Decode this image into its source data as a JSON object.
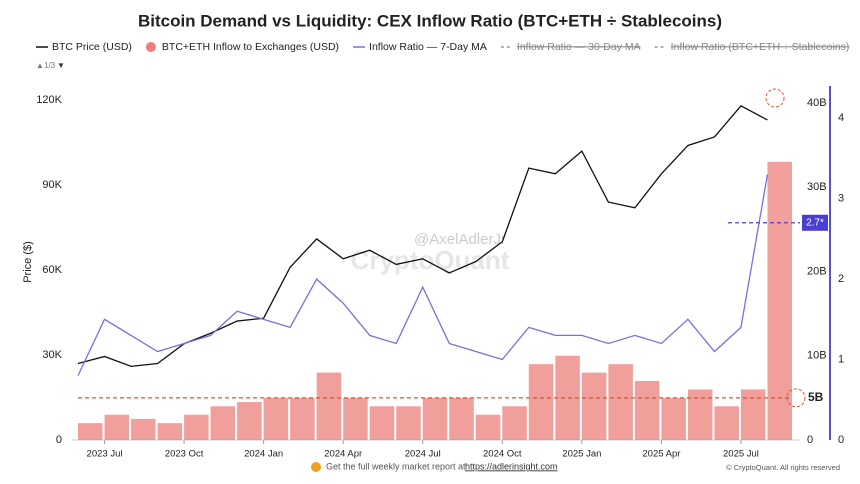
{
  "chart_data": {
    "type": "combo",
    "title": "Bitcoin Demand vs Liquidity: CEX Inflow Ratio (BTC+ETH ÷ Stablecoins)",
    "legend_page": "1/3",
    "y_label": "Price ($)",
    "watermark": [
      "@AxelAdlerJr",
      "CryptoQuant"
    ],
    "footer": {
      "text": "Get the full weekly market report at",
      "link": "https://adlerinsight.com",
      "copyright": "© CryptoQuant. All rights reserved"
    },
    "x": [
      "2023-06",
      "2023-07",
      "2023-08",
      "2023-09",
      "2023-10",
      "2023-11",
      "2023-12",
      "2024-01",
      "2024-02",
      "2024-03",
      "2024-04",
      "2024-05",
      "2024-06",
      "2024-07",
      "2024-08",
      "2024-09",
      "2024-10",
      "2024-11",
      "2024-12",
      "2025-01",
      "2025-02",
      "2025-03",
      "2025-04",
      "2025-05",
      "2025-06",
      "2025-07",
      "2025-08"
    ],
    "xlim": [
      "2023-06",
      "2025-09"
    ],
    "xticks": [
      {
        "value": "2023-07",
        "label": "2023 Jul"
      },
      {
        "value": "2023-10",
        "label": "2023 Oct"
      },
      {
        "value": "2024-01",
        "label": "2024 Jan"
      },
      {
        "value": "2024-04",
        "label": "2024 Apr"
      },
      {
        "value": "2024-07",
        "label": "2024 Jul"
      },
      {
        "value": "2024-10",
        "label": "2024 Oct"
      },
      {
        "value": "2025-01",
        "label": "2025 Jan"
      },
      {
        "value": "2025-04",
        "label": "2025 Apr"
      },
      {
        "value": "2025-07",
        "label": "2025 Jul"
      }
    ],
    "ylim": [
      0,
      125000
    ],
    "yticks": [
      0,
      {
        "value": 30000,
        "label": "30K"
      },
      {
        "value": 60000,
        "label": "60K"
      },
      {
        "value": 90000,
        "label": "90K"
      },
      {
        "value": 120000,
        "label": "120K"
      }
    ],
    "y2lim": [
      0,
      42
    ],
    "y2ticks": [
      0,
      {
        "value": 10,
        "label": "10B"
      },
      {
        "value": 20,
        "label": "20B"
      },
      {
        "value": 30,
        "label": "30B"
      },
      {
        "value": 40,
        "label": "40B"
      }
    ],
    "y3lim": [
      0,
      4.4
    ],
    "y3ticks": [
      0,
      1,
      2,
      3,
      4
    ],
    "series": [
      {
        "name": "BTC Price (USD)",
        "type": "line",
        "axis": "y",
        "color": "#111111",
        "values": [
          27000,
          29500,
          26000,
          27000,
          34000,
          37700,
          42000,
          43000,
          61000,
          71000,
          64000,
          67000,
          62000,
          64000,
          59000,
          63000,
          70000,
          96000,
          94000,
          102000,
          84000,
          82000,
          94000,
          104000,
          107000,
          118000,
          113000
        ]
      },
      {
        "name": "BTC+ETH Inflow to Exchanges (USD)",
        "type": "bar",
        "axis": "y2",
        "color": "#ec7f79",
        "values": [
          2,
          3,
          2.5,
          2,
          3,
          4,
          4.5,
          5,
          5,
          8,
          5,
          4,
          4,
          5,
          5,
          3,
          4,
          9,
          10,
          8,
          9,
          7,
          5,
          6,
          4,
          6,
          33
        ]
      },
      {
        "name": "Inflow Ratio — 7-Day MA",
        "type": "line",
        "axis": "y3",
        "color": "#7b6fe0",
        "values": [
          0.8,
          1.5,
          1.3,
          1.1,
          1.2,
          1.3,
          1.6,
          1.5,
          1.4,
          2.0,
          1.7,
          1.3,
          1.2,
          1.9,
          1.2,
          1.1,
          1.0,
          1.4,
          1.3,
          1.3,
          1.2,
          1.3,
          1.2,
          1.5,
          1.1,
          1.4,
          3.3
        ]
      }
    ],
    "hidden_series": [
      {
        "name": "Inflow Ratio — 30-Day MA",
        "color": "#999999"
      },
      {
        "name": "Inflow Ratio (BTC+ETH ÷ Stablecoins)",
        "color": "#999999"
      }
    ],
    "annotations": [
      {
        "text": "2.7*",
        "value": 2.7,
        "axis": "y3",
        "color": "#4a3fd0"
      },
      {
        "text": "5B",
        "value": 5,
        "axis": "y2",
        "color": "#e0542a"
      }
    ]
  }
}
